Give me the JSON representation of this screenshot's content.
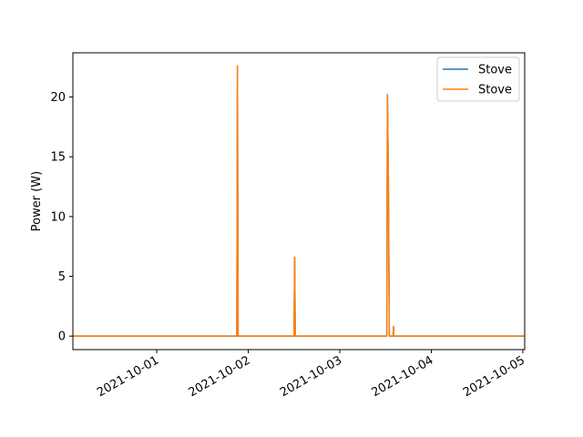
{
  "chart_data": {
    "type": "line",
    "title": "",
    "xlabel": "",
    "ylabel": "Power (W)",
    "x_axis_type": "date",
    "xlim": [
      "2021-09-30T02:00",
      "2021-10-05T00:30"
    ],
    "ylim": [
      -1.13,
      23.7
    ],
    "x_ticks": [
      "2021-10-01",
      "2021-10-02",
      "2021-10-03",
      "2021-10-04",
      "2021-10-05"
    ],
    "y_ticks": [
      0,
      5,
      10,
      15,
      20
    ],
    "grid": false,
    "legend_position": "top-right",
    "series": [
      {
        "name": "Stove",
        "color": "#1f77b4",
        "points": [
          [
            "2021-09-30T02:00",
            0
          ],
          [
            "2021-10-01T21:00",
            0
          ],
          [
            "2021-10-01T21:10",
            22.6
          ],
          [
            "2021-10-01T21:20",
            0
          ],
          [
            "2021-10-02T12:00",
            0
          ],
          [
            "2021-10-02T12:10",
            6.6
          ],
          [
            "2021-10-02T12:20",
            0
          ],
          [
            "2021-10-03T12:20",
            0
          ],
          [
            "2021-10-03T12:30",
            20.2
          ],
          [
            "2021-10-03T12:45",
            13.0
          ],
          [
            "2021-10-03T13:00",
            0
          ],
          [
            "2021-10-03T14:00",
            0
          ],
          [
            "2021-10-03T14:05",
            0.8
          ],
          [
            "2021-10-03T14:10",
            0
          ],
          [
            "2021-10-05T00:30",
            0
          ]
        ]
      },
      {
        "name": "Stove",
        "color": "#ff7f0e",
        "points": [
          [
            "2021-09-30T02:00",
            0
          ],
          [
            "2021-10-01T21:00",
            0
          ],
          [
            "2021-10-01T21:10",
            22.6
          ],
          [
            "2021-10-01T21:20",
            0
          ],
          [
            "2021-10-02T12:00",
            0
          ],
          [
            "2021-10-02T12:10",
            6.6
          ],
          [
            "2021-10-02T12:20",
            0
          ],
          [
            "2021-10-03T12:20",
            0
          ],
          [
            "2021-10-03T12:30",
            20.2
          ],
          [
            "2021-10-03T12:45",
            13.0
          ],
          [
            "2021-10-03T13:00",
            0
          ],
          [
            "2021-10-03T14:00",
            0
          ],
          [
            "2021-10-03T14:05",
            0.8
          ],
          [
            "2021-10-03T14:10",
            0
          ],
          [
            "2021-10-05T00:30",
            0
          ]
        ]
      }
    ]
  }
}
